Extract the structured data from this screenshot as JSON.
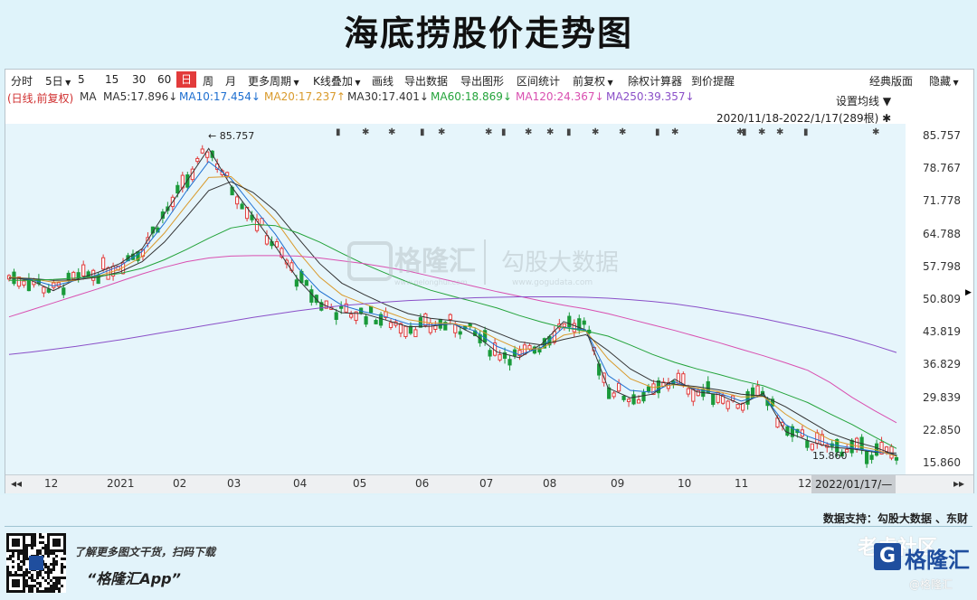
{
  "title": "海底捞股价走势图",
  "toolbar": {
    "items": [
      {
        "label": "分时"
      },
      {
        "label": "5日",
        "caret": true
      },
      {
        "label": "5"
      },
      {
        "label": "15"
      },
      {
        "label": "30"
      },
      {
        "label": "60"
      },
      {
        "label": "日",
        "active": true
      },
      {
        "label": "周"
      },
      {
        "label": "月"
      },
      {
        "label": "更多周期",
        "caret": true
      },
      {
        "label": "K线叠加",
        "caret": true
      },
      {
        "label": "画线"
      },
      {
        "label": "导出数据"
      },
      {
        "label": "导出图形"
      },
      {
        "label": "区间统计"
      },
      {
        "label": "前复权",
        "caret": true
      },
      {
        "label": "除权计算器"
      },
      {
        "label": "到价提醒"
      }
    ],
    "right": [
      {
        "label": "经典版面"
      },
      {
        "label": "隐藏",
        "caret": true
      }
    ]
  },
  "ma_legend": [
    {
      "text": "(日线,前复权)",
      "color": "#d03030"
    },
    {
      "text": "MA",
      "color": "#333333"
    },
    {
      "text": "MA5:17.896↓",
      "color": "#333333"
    },
    {
      "text": "MA10:17.454↓",
      "color": "#1e6fd0"
    },
    {
      "text": "MA20:17.237↑",
      "color": "#d99a2b"
    },
    {
      "text": "MA30:17.401↓",
      "color": "#333333"
    },
    {
      "text": "MA60:18.869↓",
      "color": "#23a33a"
    },
    {
      "text": "MA120:24.367↓",
      "color": "#d94fb0"
    },
    {
      "text": "MA250:39.357↓",
      "color": "#8a4fc8"
    }
  ],
  "ma_settings": "设置均线",
  "range_label": "2020/11/18-2022/1/17(289根)",
  "xaxis": {
    "end_label": "2022/01/17/—"
  },
  "chart_data": {
    "type": "line",
    "ylim": [
      15.86,
      85.757
    ],
    "yticks": [
      85.757,
      78.767,
      71.778,
      64.788,
      57.798,
      50.809,
      43.819,
      36.829,
      29.839,
      22.85,
      15.86
    ],
    "xticks": [
      "12",
      "2021",
      "02",
      "03",
      "04",
      "05",
      "06",
      "07",
      "08",
      "09",
      "10",
      "11",
      "12"
    ],
    "annotations": [
      {
        "text": "85.757",
        "x": "2021-02",
        "y": 85.757
      },
      {
        "text": "15.860",
        "x": "2021-12",
        "y": 15.86
      }
    ],
    "series": [
      {
        "name": "MA5",
        "color": "#333333",
        "values": [
          55.5,
          54.8,
          52.6,
          55.0,
          56.5,
          58.4,
          61.6,
          69.0,
          75.9,
          83.0,
          75.0,
          68.6,
          62.1,
          55.2,
          50.0,
          47.9,
          47.7,
          46.3,
          44.9,
          45.0,
          45.6,
          43.2,
          39.5,
          38.3,
          41.2,
          46.0,
          44.2,
          31.8,
          29.7,
          30.5,
          33.7,
          31.0,
          30.4,
          28.3,
          30.7,
          22.5,
          20.6,
          19.2,
          18.8,
          18.1,
          17.9
        ]
      },
      {
        "name": "MA10",
        "color": "#1e6fd0",
        "values": [
          55.5,
          55.0,
          53.6,
          54.8,
          56.0,
          57.9,
          61.0,
          67.0,
          73.9,
          80.2,
          76.5,
          70.5,
          64.7,
          57.6,
          52.5,
          49.5,
          48.1,
          47.0,
          45.5,
          45.3,
          45.5,
          44.0,
          40.7,
          38.9,
          40.5,
          44.8,
          44.2,
          34.5,
          31.3,
          30.9,
          33.1,
          31.5,
          30.7,
          29.0,
          30.2,
          24.0,
          21.5,
          19.8,
          19.0,
          18.3,
          17.5
        ]
      },
      {
        "name": "MA20",
        "color": "#d99a2b",
        "values": [
          55.5,
          55.2,
          54.4,
          54.8,
          55.7,
          57.2,
          59.9,
          64.9,
          70.9,
          76.8,
          77.0,
          72.7,
          67.7,
          61.1,
          55.5,
          51.7,
          49.8,
          48.1,
          46.4,
          45.7,
          45.6,
          44.7,
          42.2,
          40.1,
          40.2,
          43.1,
          44.0,
          38.0,
          33.8,
          31.9,
          32.5,
          31.8,
          31.0,
          29.9,
          30.0,
          26.2,
          23.2,
          20.8,
          19.6,
          18.7,
          17.2
        ]
      },
      {
        "name": "MA30",
        "color": "#333333",
        "values": [
          55.3,
          55.2,
          54.8,
          54.9,
          55.5,
          56.6,
          58.8,
          63.0,
          68.4,
          74.0,
          75.9,
          73.6,
          69.7,
          64.0,
          58.4,
          54.2,
          51.8,
          49.6,
          47.7,
          46.7,
          46.2,
          45.5,
          43.6,
          41.7,
          41.0,
          42.2,
          43.2,
          39.8,
          35.9,
          33.3,
          32.6,
          32.1,
          31.4,
          30.5,
          30.1,
          27.8,
          25.0,
          22.2,
          20.5,
          19.2,
          17.4
        ]
      },
      {
        "name": "MA60",
        "color": "#23a33a",
        "values": [
          54.8,
          54.8,
          55.0,
          55.3,
          55.7,
          56.3,
          57.4,
          59.2,
          61.4,
          63.8,
          66.0,
          66.8,
          66.5,
          65.0,
          63.0,
          60.6,
          58.3,
          56.3,
          54.4,
          52.7,
          51.4,
          50.2,
          48.9,
          47.3,
          45.9,
          44.7,
          44.0,
          42.9,
          41.0,
          39.0,
          37.3,
          35.9,
          34.7,
          33.4,
          32.3,
          30.5,
          28.7,
          26.3,
          24.0,
          21.4,
          18.9
        ]
      },
      {
        "name": "MA120",
        "color": "#d94fb0",
        "values": [
          47.0,
          48.5,
          50.0,
          51.5,
          53.0,
          54.6,
          56.2,
          57.6,
          58.8,
          59.6,
          60.0,
          60.1,
          60.1,
          60.0,
          59.6,
          59.0,
          58.4,
          57.6,
          56.8,
          55.7,
          54.6,
          53.5,
          52.4,
          51.4,
          50.4,
          49.5,
          48.7,
          47.7,
          46.5,
          45.3,
          44.1,
          42.8,
          41.5,
          40.1,
          38.7,
          37.2,
          35.6,
          33.0,
          29.8,
          27.0,
          24.4
        ]
      },
      {
        "name": "MA250",
        "color": "#8a4fc8",
        "values": [
          39.0,
          39.5,
          40.1,
          40.7,
          41.4,
          42.1,
          42.9,
          43.7,
          44.5,
          45.3,
          46.1,
          46.9,
          47.6,
          48.3,
          48.9,
          49.4,
          49.8,
          50.2,
          50.5,
          50.7,
          50.9,
          51.1,
          51.2,
          51.3,
          51.3,
          51.3,
          51.2,
          51.0,
          50.7,
          50.3,
          49.8,
          49.1,
          48.3,
          47.5,
          46.6,
          45.6,
          44.6,
          43.5,
          42.3,
          40.9,
          39.4
        ]
      }
    ],
    "legend_position": "top-left",
    "grid": false
  },
  "watermark": {
    "brand": "格隆汇",
    "url": "www.gelonghui.com",
    "brand2": "勾股大数据",
    "url2": "www.gogudata.com"
  },
  "footer": {
    "support": "数据支持：勾股大数据 、东财",
    "slogan": "了解更多图文干货，扫码下载",
    "app": "“格隆汇App”",
    "logo_text": "格隆汇",
    "logo_icon": "G",
    "laohu": "老虎社区",
    "laohu_sub": "@格隆汇"
  }
}
